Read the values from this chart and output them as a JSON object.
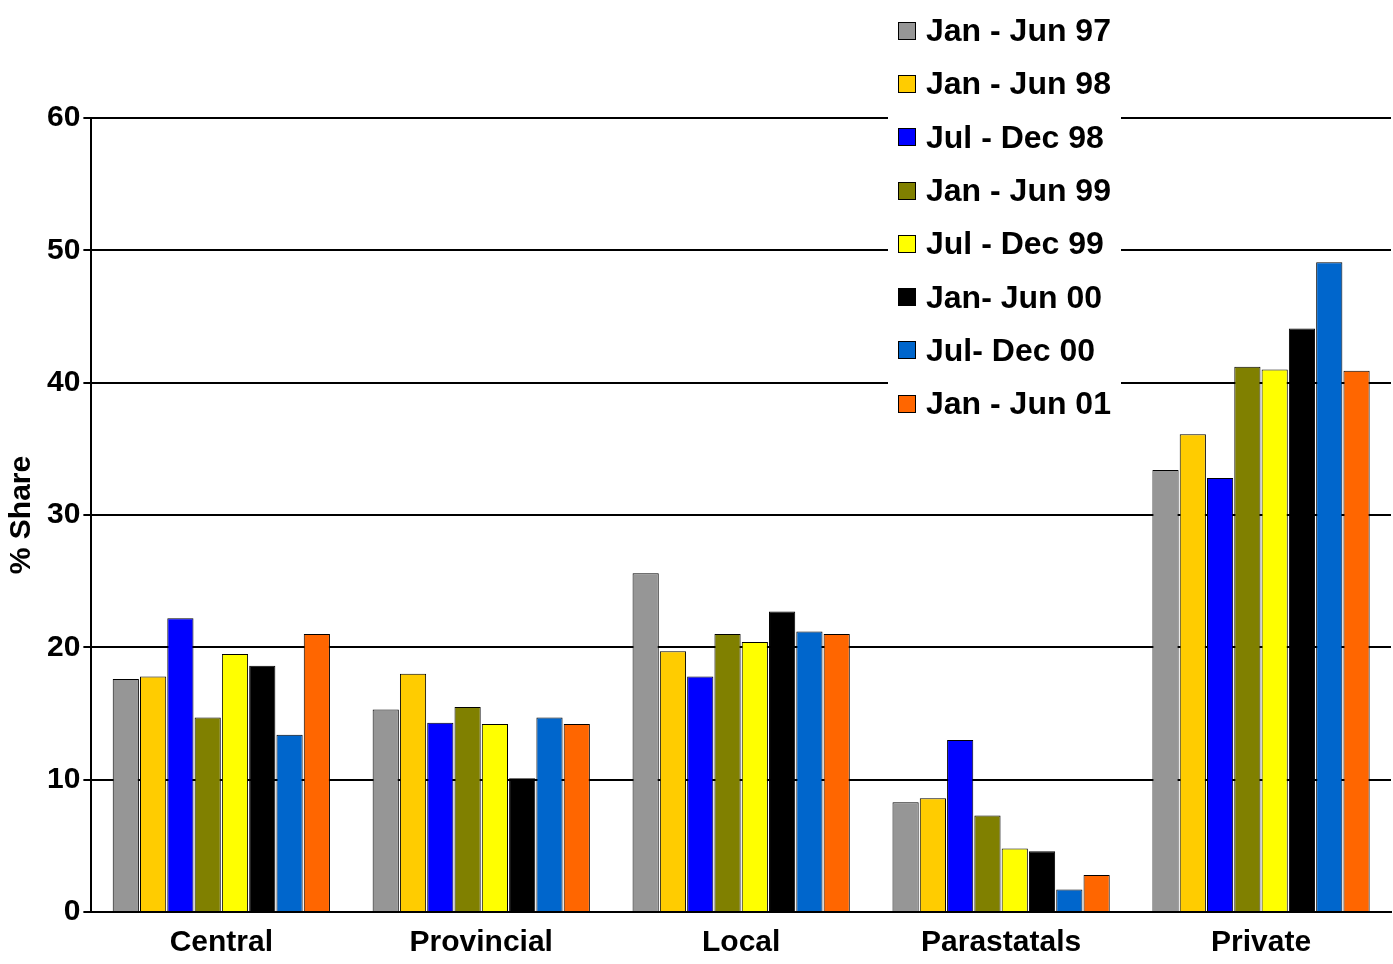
{
  "chart_data": {
    "type": "bar",
    "ylabel": "% Share",
    "categories": [
      "Central",
      "Provincial",
      "Local",
      "Parastatals",
      "Private"
    ],
    "series": [
      {
        "name": "Jan - Jun 97",
        "color": "#969696",
        "values": [
          17.6,
          15.3,
          25.6,
          8.3,
          33.4
        ]
      },
      {
        "name": "Jan - Jun 98",
        "color": "#ffcc00",
        "values": [
          17.8,
          18.0,
          19.7,
          8.6,
          36.1
        ]
      },
      {
        "name": "Jul - Dec 98",
        "color": "#0000ff",
        "values": [
          22.2,
          14.3,
          17.8,
          13.0,
          32.8
        ]
      },
      {
        "name": "Jan - Jun 99",
        "color": "#808000",
        "values": [
          14.7,
          15.5,
          21.0,
          7.3,
          41.2
        ]
      },
      {
        "name": "Jul - Dec 99",
        "color": "#ffff00",
        "values": [
          19.5,
          14.2,
          20.4,
          4.8,
          41.0
        ]
      },
      {
        "name": "Jan- Jun 00",
        "color": "#000000",
        "values": [
          18.6,
          10.1,
          22.7,
          4.6,
          44.1
        ]
      },
      {
        "name": "Jul- Dec 00",
        "color": "#0066cc",
        "values": [
          13.4,
          14.7,
          21.2,
          1.7,
          49.1
        ]
      },
      {
        "name": "Jan - Jun 01",
        "color": "#ff6600",
        "values": [
          21.0,
          14.2,
          21.0,
          2.8,
          40.9
        ]
      }
    ],
    "ylim": [
      0,
      60
    ],
    "yticks": [
      0,
      10,
      20,
      30,
      40,
      50,
      60
    ],
    "grid": "y",
    "legend": "top right"
  }
}
